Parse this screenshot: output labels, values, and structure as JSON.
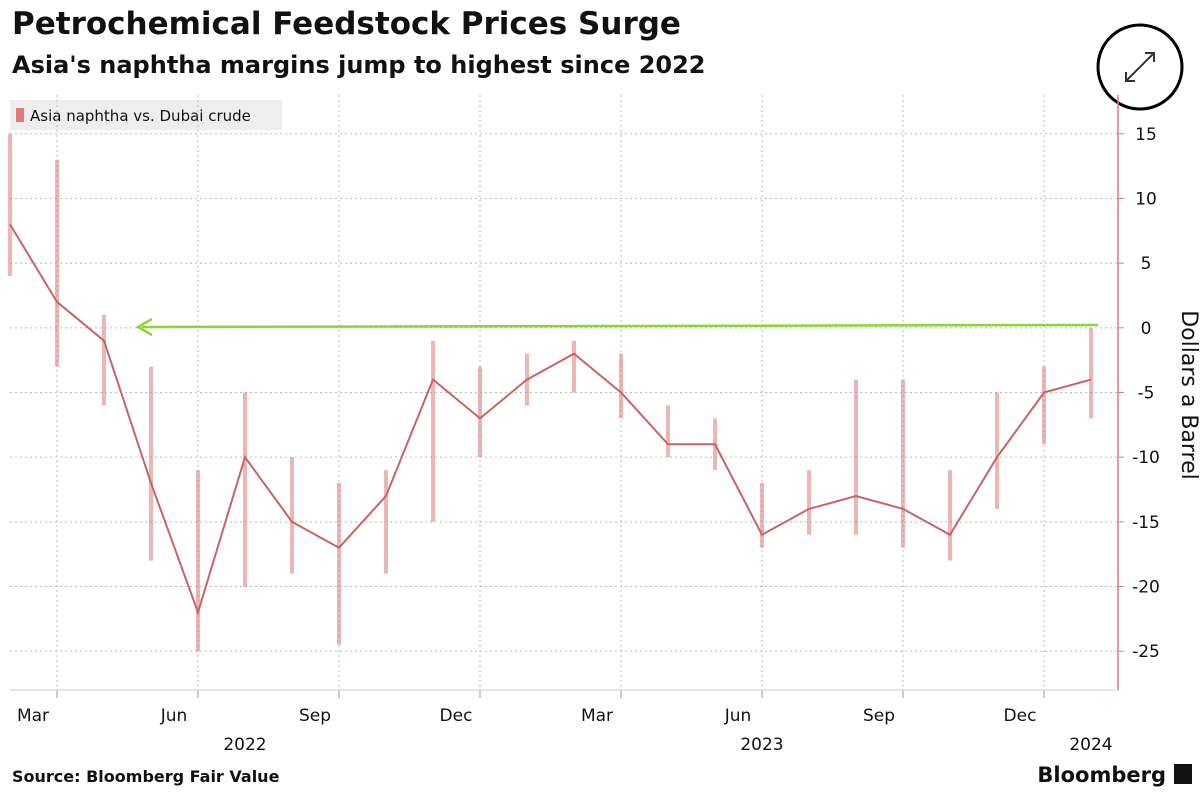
{
  "chart_data": {
    "type": "range-line",
    "title": "Petrochemical Feedstock Prices Surge",
    "subtitle": "Asia's naphtha margins jump to highest since 2022",
    "y_label": "Dollars a Barrel",
    "source": "Source: Bloomberg Fair Value",
    "brand": "Bloomberg",
    "x": [
      "2022-02",
      "2022-03",
      "2022-04",
      "2022-05",
      "2022-06",
      "2022-07",
      "2022-08",
      "2022-09",
      "2022-10",
      "2022-11",
      "2022-12",
      "2023-01",
      "2023-02",
      "2023-03",
      "2023-04",
      "2023-05",
      "2023-06",
      "2023-07",
      "2023-08",
      "2023-09",
      "2023-10",
      "2023-11",
      "2023-12",
      "2024-01"
    ],
    "xlim": [
      "2022-02",
      "2024-01"
    ],
    "xticks": [
      {
        "value": "2022-03",
        "label": "Mar"
      },
      {
        "value": "2022-06",
        "label": "Jun"
      },
      {
        "value": "2022-09",
        "label": "Sep"
      },
      {
        "value": "2022-12",
        "label": "Dec"
      },
      {
        "value": "2023-03",
        "label": "Mar"
      },
      {
        "value": "2023-06",
        "label": "Jun"
      },
      {
        "value": "2023-09",
        "label": "Sep"
      },
      {
        "value": "2023-12",
        "label": "Dec"
      }
    ],
    "year_ticks": [
      {
        "value": "2022-07",
        "label": "2022"
      },
      {
        "value": "2023-06",
        "label": "2023"
      },
      {
        "value": "2024-01",
        "label": "2024"
      }
    ],
    "ylim": [
      -28,
      18
    ],
    "yticks": [
      15,
      10,
      5,
      0,
      -5,
      -10,
      -15,
      -20,
      -25
    ],
    "grid": true,
    "series": [
      {
        "name": "Asia naphtha vs. Dubai crude",
        "color": "#e07b7b",
        "values": [
          8,
          2,
          -1,
          -12,
          -22,
          -10,
          -15,
          -17,
          -13,
          -4,
          -7,
          -4,
          -2,
          -5,
          -9,
          -9,
          -16,
          -14,
          -13,
          -14,
          -16,
          -10,
          -5,
          -4
        ],
        "high": [
          15,
          13,
          1,
          -3,
          -11,
          -5,
          -10,
          -12,
          -11,
          -1,
          -3,
          -2,
          -1,
          -2,
          -6,
          -7,
          -12,
          -11,
          -4,
          -4,
          -11,
          -5,
          -3,
          0
        ],
        "low": [
          4,
          -3,
          -6,
          -18,
          -25,
          -20,
          -19,
          -24.5,
          -19,
          -15,
          -10,
          -6,
          -5,
          -7,
          -10,
          -11,
          -17,
          -16,
          -16,
          -17,
          -18,
          -14,
          -9,
          -7
        ]
      }
    ]
  }
}
